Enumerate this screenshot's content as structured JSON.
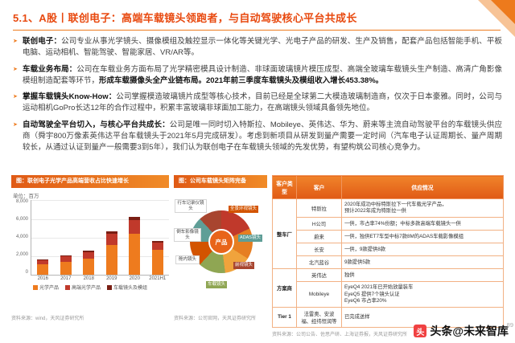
{
  "header": {
    "title": "5.1、A股丨联创电子：高端车载镜头领跑者，与自动驾驶核心平台共成长"
  },
  "accent_colors": {
    "orange": "#ee7b1e",
    "deep_orange": "#e05a15",
    "title_red": "#e8490f"
  },
  "bullets": [
    {
      "segments": [
        {
          "t": "联创电子：",
          "b": true
        },
        {
          "t": "公司专业从事光学镜头、摄像模组及触控显示一体化等关键光学、光电子产品的研发、生产及销售，配套产品包括智能手机、平板电脑、运动相机、智能驾驶、智能家居、VR/AR等。",
          "b": false
        }
      ]
    },
    {
      "segments": [
        {
          "t": "车载业务布局：",
          "b": true
        },
        {
          "t": "公司在车载业务方面布局了光学精密模具设计制造、非球面玻璃镜片模压成型、高端全玻璃车载镜头生产制造、高清广角影像模组制造配套等环节，",
          "b": false
        },
        {
          "t": "形成车载摄像头全产业链布局。2021年前三季度车载镜头及模组收入增长453.38%。",
          "b": true
        }
      ]
    },
    {
      "segments": [
        {
          "t": "掌握车载镜头Know-How：",
          "b": true
        },
        {
          "t": "公司掌握模造玻璃镜片成型等核心技术，目前已经是全球第二大模造玻璃制造商，仅次于日本豪雅。同时，公司与运动相机GoPro长达12年的合作过程中，积累丰富玻璃非球面加工能力，在高端镜头领域具备领先地位。",
          "b": false
        }
      ]
    },
    {
      "segments": [
        {
          "t": "自动驾驶全平台切入，与核心平台共成长：",
          "b": true
        },
        {
          "t": "公司是唯一同时切入特斯拉、Mobileye、英伟达、华为、蔚来等主流自动驾驶平台的车载镜头供应商（舜宇800万像素英伟达平台车载镜头于2021年5月完成研发）。考虑到新项目从研发到量产需要一定时间（汽车电子认证周期长、量产周期较长，从通过认证到量产一般需要3到5年），我们认为联创电子在车载镜头领域的先发优势，有望构筑公司核心竞争力。",
          "b": false
        }
      ]
    }
  ],
  "chart_data": [
    {
      "type": "bar",
      "title": "图：联创电子光学产品高端营收占比快速增长",
      "unit": "单位：百万",
      "categories": [
        "2016",
        "2017",
        "2018",
        "2019",
        "2020",
        "2021H1"
      ],
      "series": [
        {
          "name": "光学产品",
          "color": "#ee7b1e",
          "values": [
            1150,
            1400,
            1750,
            3200,
            4400,
            2700
          ]
        },
        {
          "name": "高端光学产品",
          "color": "#c0392b",
          "values": [
            450,
            600,
            700,
            1200,
            1500,
            800
          ]
        },
        {
          "name": "车载镜头及模组",
          "color": "#7a1f14",
          "values": [
            100,
            120,
            150,
            250,
            350,
            150
          ]
        }
      ],
      "ylim": [
        0,
        8000
      ],
      "yticks": [
        "8,000",
        "6,000",
        "4,000",
        "2,000",
        "0"
      ],
      "grid": true,
      "legend_position": "bottom",
      "source": "资料来源：wind，天风证券研究所"
    },
    {
      "type": "pie",
      "title": "图：公司车载镜头矩阵完备",
      "center_label": "产品",
      "segments": [
        {
          "label": "行车记录仪镜头",
          "value": 18,
          "color": "#c0392b"
        },
        {
          "label": "倒车影像镜头",
          "value": 16,
          "color": "#e67e22"
        },
        {
          "label": "舱内镜头",
          "value": 14,
          "color": "#f0a33c"
        },
        {
          "label": "车载镜头",
          "value": 14,
          "color": "#8fa653"
        },
        {
          "label": "全景环视镜头",
          "value": 13,
          "color": "#d35400"
        },
        {
          "label": "ADAS镜头",
          "value": 13,
          "color": "#5f9e97"
        },
        {
          "label": "前视镜头",
          "value": 12,
          "color": "#a8452f"
        }
      ],
      "source": "资料来源：公司官网，天风证券研究所"
    }
  ],
  "supply_table": {
    "headers": [
      "客户类型",
      "客户",
      "供应情况"
    ],
    "rows": [
      {
        "type": "整车厂",
        "rowspan": 5,
        "client": "特斯拉",
        "supply": [
          "2020年成功中标特斯拉下一代车载光学产品，",
          "预计2022年成为特斯拉一供"
        ]
      },
      {
        "client": "H公司",
        "supply": [
          "一供，市占率74%份额；中标多款高端车载镜头一供"
        ]
      },
      {
        "client": "蔚来",
        "supply": [
          "一供，独供ET7车型中标7款8M的ADAS车载影像模组"
        ]
      },
      {
        "client": "长安",
        "supply": [
          "一供，9款提供8款"
        ]
      },
      {
        "client": "北汽蓝谷",
        "supply": [
          "9款提供5款"
        ]
      },
      {
        "type": "方案商",
        "rowspan": 2,
        "client": "英伟达",
        "supply": [
          "独供"
        ]
      },
      {
        "client": "Mobileye",
        "supply": [
          "EyeQ4 2021年已开始放量装车",
          "EyeQ5 提供7个镜头认证",
          "EyeQ6 市占率20%"
        ]
      },
      {
        "type": "Tier 1",
        "rowspan": 1,
        "client": "法雷奥、安波福、经纬恒润等",
        "supply": [
          "已完成送样"
        ]
      }
    ],
    "source": "资料来源：公司公告、佐思产研、上海证券报，天风证券研究所"
  },
  "footer": {
    "watermark": "头条@未来智库",
    "page": "89",
    "logo_char": "头"
  }
}
